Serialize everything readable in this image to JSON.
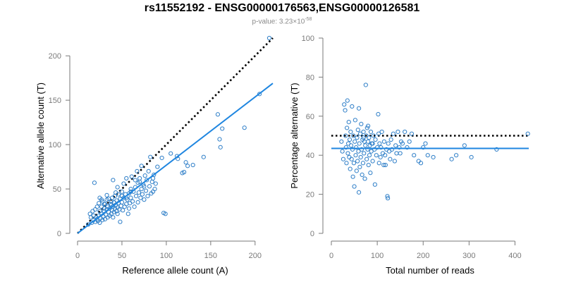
{
  "header": {
    "title": "rs11552192 - ENSG00000176563,ENSG00000126581",
    "subtitle_prefix": "p-value: 3.23×10",
    "subtitle_exponent": "-58"
  },
  "colors": {
    "points": "#2f7fc8",
    "fit_line": "#1f86e0",
    "reference_line": "#000000",
    "axis": "#7a7a7a"
  },
  "chart_data": [
    {
      "type": "scatter",
      "xlabel": "Reference allele count (A)",
      "ylabel": "Alternative allele count (T)",
      "xlim": [
        0,
        220
      ],
      "ylim": [
        0,
        220
      ],
      "xticks": [
        0,
        50,
        100,
        150,
        200
      ],
      "yticks": [
        0,
        50,
        100,
        150,
        200
      ],
      "grid": false,
      "reference_line": {
        "style": "dotted",
        "from": [
          0,
          0
        ],
        "to": [
          220,
          220
        ]
      },
      "fit_line": {
        "from": [
          0,
          0
        ],
        "to": [
          220,
          169
        ]
      },
      "points": [
        [
          12,
          10
        ],
        [
          14,
          22
        ],
        [
          15,
          18
        ],
        [
          16,
          12
        ],
        [
          17,
          25
        ],
        [
          18,
          15
        ],
        [
          18,
          20
        ],
        [
          19,
          57
        ],
        [
          20,
          27
        ],
        [
          20,
          13
        ],
        [
          21,
          18
        ],
        [
          22,
          30
        ],
        [
          22,
          16
        ],
        [
          23,
          14
        ],
        [
          24,
          20
        ],
        [
          24,
          34
        ],
        [
          25,
          12
        ],
        [
          25,
          25
        ],
        [
          26,
          17
        ],
        [
          27,
          22
        ],
        [
          27,
          30
        ],
        [
          28,
          15
        ],
        [
          28,
          36
        ],
        [
          29,
          19
        ],
        [
          30,
          25
        ],
        [
          30,
          28
        ],
        [
          31,
          16
        ],
        [
          31,
          33
        ],
        [
          32,
          21
        ],
        [
          33,
          38
        ],
        [
          33,
          27
        ],
        [
          34,
          18
        ],
        [
          34,
          30
        ],
        [
          35,
          24
        ],
        [
          35,
          39
        ],
        [
          36,
          20
        ],
        [
          36,
          28
        ],
        [
          37,
          33
        ],
        [
          38,
          22
        ],
        [
          38,
          36
        ],
        [
          39,
          26
        ],
        [
          39,
          40
        ],
        [
          40,
          30
        ],
        [
          40,
          18
        ],
        [
          41,
          35
        ],
        [
          41,
          24
        ],
        [
          42,
          42
        ],
        [
          42,
          28
        ],
        [
          43,
          32
        ],
        [
          43,
          46
        ],
        [
          44,
          25
        ],
        [
          44,
          37
        ],
        [
          45,
          29
        ],
        [
          45,
          22
        ],
        [
          46,
          44
        ],
        [
          46,
          34
        ],
        [
          47,
          27
        ],
        [
          48,
          39
        ],
        [
          48,
          13
        ],
        [
          49,
          31
        ],
        [
          50,
          35
        ],
        [
          50,
          47
        ],
        [
          51,
          26
        ],
        [
          52,
          40
        ],
        [
          52,
          56
        ],
        [
          53,
          30
        ],
        [
          54,
          44
        ],
        [
          55,
          33
        ],
        [
          55,
          62
        ],
        [
          56,
          38
        ],
        [
          57,
          22
        ],
        [
          58,
          45
        ],
        [
          58,
          28
        ],
        [
          59,
          34
        ],
        [
          60,
          50
        ],
        [
          60,
          40
        ],
        [
          61,
          64
        ],
        [
          62,
          36
        ],
        [
          63,
          47
        ],
        [
          64,
          30
        ],
        [
          65,
          52
        ],
        [
          66,
          42
        ],
        [
          67,
          70
        ],
        [
          68,
          57
        ],
        [
          68,
          35
        ],
        [
          69,
          46
        ],
        [
          70,
          62
        ],
        [
          71,
          40
        ],
        [
          72,
          50
        ],
        [
          72,
          76
        ],
        [
          73,
          44
        ],
        [
          74,
          55
        ],
        [
          75,
          38
        ],
        [
          76,
          65
        ],
        [
          77,
          48
        ],
        [
          78,
          60
        ],
        [
          79,
          42
        ],
        [
          80,
          70
        ],
        [
          81,
          53
        ],
        [
          82,
          86
        ],
        [
          83,
          45
        ],
        [
          84,
          58
        ],
        [
          85,
          47
        ],
        [
          86,
          66
        ],
        [
          87,
          50
        ],
        [
          88,
          56
        ],
        [
          40,
          60
        ],
        [
          33,
          43
        ],
        [
          27,
          38
        ],
        [
          30,
          33
        ],
        [
          55,
          40
        ],
        [
          60,
          47
        ],
        [
          45,
          52
        ],
        [
          70,
          58
        ],
        [
          75,
          53
        ],
        [
          97,
          23
        ],
        [
          99,
          22
        ],
        [
          112,
          87
        ],
        [
          113,
          84
        ],
        [
          118,
          68
        ],
        [
          120,
          69
        ],
        [
          122,
          80
        ],
        [
          124,
          76
        ],
        [
          130,
          77
        ],
        [
          142,
          86
        ],
        [
          158,
          134
        ],
        [
          160,
          106
        ],
        [
          161,
          97
        ],
        [
          163,
          118
        ],
        [
          188,
          119
        ],
        [
          205,
          157
        ],
        [
          216,
          220
        ],
        [
          105,
          90
        ],
        [
          95,
          85
        ],
        [
          90,
          75
        ],
        [
          85,
          62
        ],
        [
          65,
          60
        ],
        [
          50,
          42
        ],
        [
          38,
          32
        ],
        [
          25,
          40
        ]
      ]
    },
    {
      "type": "scatter",
      "xlabel": "Total number of reads",
      "ylabel": "Percentage alternative (T)",
      "xlim": [
        0,
        430
      ],
      "ylim": [
        0,
        100
      ],
      "xticks": [
        0,
        100,
        200,
        300,
        400
      ],
      "yticks": [
        0,
        20,
        40,
        60,
        80,
        100
      ],
      "grid": false,
      "reference_line": {
        "style": "dotted",
        "y": 50
      },
      "fit_line": {
        "y": 43.5
      },
      "points": [
        [
          22,
          47
        ],
        [
          24,
          42
        ],
        [
          26,
          38
        ],
        [
          28,
          66
        ],
        [
          30,
          63
        ],
        [
          31,
          50
        ],
        [
          32,
          44
        ],
        [
          33,
          36
        ],
        [
          34,
          54
        ],
        [
          35,
          68
        ],
        [
          36,
          41
        ],
        [
          37,
          46
        ],
        [
          38,
          57
        ],
        [
          39,
          39
        ],
        [
          40,
          48
        ],
        [
          41,
          33
        ],
        [
          42,
          52
        ],
        [
          43,
          45
        ],
        [
          44,
          38
        ],
        [
          45,
          65
        ],
        [
          46,
          43
        ],
        [
          47,
          29
        ],
        [
          48,
          50
        ],
        [
          49,
          36
        ],
        [
          50,
          24
        ],
        [
          51,
          47
        ],
        [
          52,
          58
        ],
        [
          53,
          40
        ],
        [
          54,
          44
        ],
        [
          55,
          32
        ],
        [
          56,
          49
        ],
        [
          57,
          37
        ],
        [
          58,
          53
        ],
        [
          59,
          42
        ],
        [
          60,
          21
        ],
        [
          61,
          46
        ],
        [
          62,
          34
        ],
        [
          63,
          51
        ],
        [
          64,
          39
        ],
        [
          65,
          56
        ],
        [
          66,
          43
        ],
        [
          67,
          30
        ],
        [
          68,
          48
        ],
        [
          69,
          36
        ],
        [
          70,
          52
        ],
        [
          71,
          41
        ],
        [
          72,
          47
        ],
        [
          73,
          28
        ],
        [
          74,
          45
        ],
        [
          75,
          76
        ],
        [
          76,
          50
        ],
        [
          77,
          38
        ],
        [
          78,
          54
        ],
        [
          79,
          43
        ],
        [
          80,
          47
        ],
        [
          81,
          35
        ],
        [
          82,
          49
        ],
        [
          83,
          40
        ],
        [
          84,
          45
        ],
        [
          85,
          31
        ],
        [
          86,
          52
        ],
        [
          87,
          42
        ],
        [
          88,
          46
        ],
        [
          90,
          37
        ],
        [
          92,
          50
        ],
        [
          94,
          43
        ],
        [
          95,
          25
        ],
        [
          96,
          48
        ],
        [
          98,
          40
        ],
        [
          100,
          44
        ],
        [
          102,
          61
        ],
        [
          103,
          51
        ],
        [
          104,
          36
        ],
        [
          105,
          46
        ],
        [
          107,
          39
        ],
        [
          108,
          44
        ],
        [
          110,
          52
        ],
        [
          112,
          41
        ],
        [
          114,
          35
        ],
        [
          115,
          47
        ],
        [
          117,
          40
        ],
        [
          118,
          35
        ],
        [
          120,
          43
        ],
        [
          122,
          19
        ],
        [
          123,
          18
        ],
        [
          124,
          46
        ],
        [
          126,
          42
        ],
        [
          128,
          38
        ],
        [
          130,
          48
        ],
        [
          132,
          43
        ],
        [
          135,
          51
        ],
        [
          138,
          37
        ],
        [
          140,
          45
        ],
        [
          142,
          41
        ],
        [
          145,
          52
        ],
        [
          148,
          44
        ],
        [
          150,
          41
        ],
        [
          152,
          47
        ],
        [
          155,
          46
        ],
        [
          160,
          52
        ],
        [
          165,
          44
        ],
        [
          170,
          47
        ],
        [
          175,
          51
        ],
        [
          180,
          40
        ],
        [
          190,
          37
        ],
        [
          195,
          36
        ],
        [
          200,
          44
        ],
        [
          205,
          46
        ],
        [
          210,
          40
        ],
        [
          222,
          39
        ],
        [
          262,
          38
        ],
        [
          272,
          40
        ],
        [
          290,
          45
        ],
        [
          305,
          39
        ],
        [
          360,
          43
        ],
        [
          428,
          51
        ],
        [
          60,
          64
        ],
        [
          70,
          49
        ],
        [
          80,
          55
        ],
        [
          90,
          46
        ]
      ]
    }
  ]
}
